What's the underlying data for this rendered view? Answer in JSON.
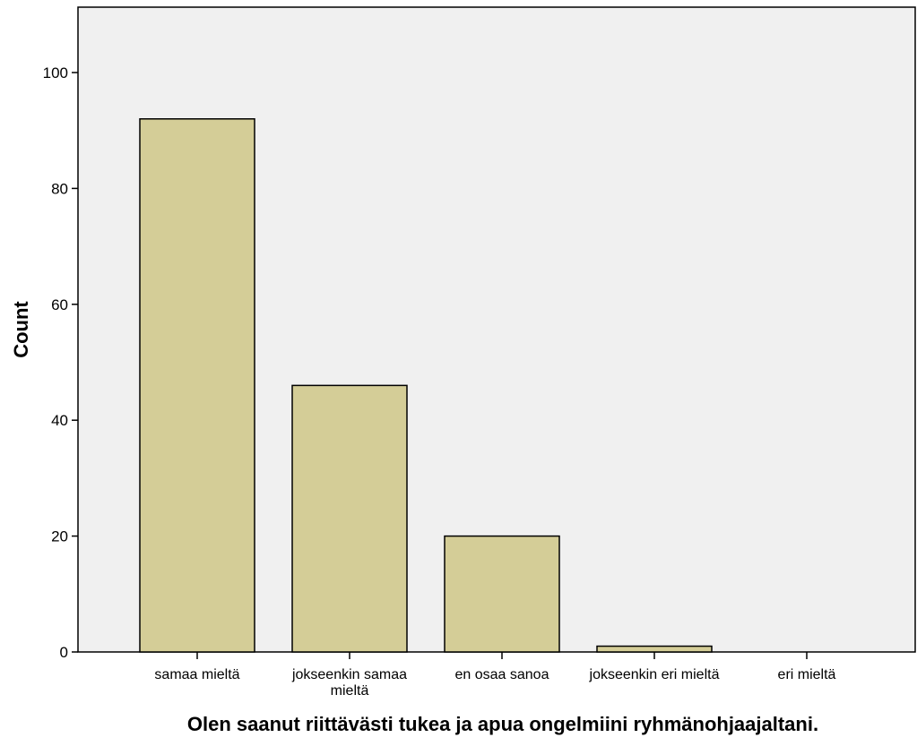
{
  "chart_data": {
    "type": "bar",
    "categories": [
      [
        "samaa mieltä"
      ],
      [
        "jokseenkin samaa",
        "mieltä"
      ],
      [
        "en osaa sanoa"
      ],
      [
        "jokseenkin eri mieltä"
      ],
      [
        "eri mieltä"
      ]
    ],
    "values": [
      92,
      46,
      20,
      1,
      0
    ],
    "xlabel": "Olen saanut riittävästi tukea ja apua ongelmiini ryhmänohjaajaltani.",
    "ylabel": "Count",
    "ylim": [
      0,
      100
    ],
    "yticks": [
      "0",
      "20",
      "40",
      "60",
      "80",
      "100"
    ],
    "grid": false,
    "colors": {
      "plot_background": "#f0f0f0",
      "bar_fill": "#d4cd97",
      "bar_stroke": "#000000"
    }
  }
}
